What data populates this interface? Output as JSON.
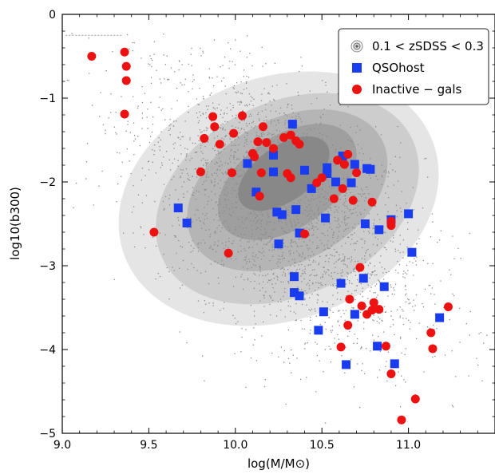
{
  "chart_data": {
    "type": "scatter",
    "title": "",
    "xlabel": "log(M/M⊙)",
    "ylabel": "log10(b300)",
    "xlim": [
      9.0,
      11.5
    ],
    "ylim": [
      -5.0,
      0.0
    ],
    "x_ticks": [
      {
        "value": 9.0,
        "label": "9.0"
      },
      {
        "value": 9.5,
        "label": "9.5"
      },
      {
        "value": 10.0,
        "label": "10.0"
      },
      {
        "value": 10.5,
        "label": "10.5"
      },
      {
        "value": 11.0,
        "label": "11.0"
      }
    ],
    "y_ticks": [
      {
        "value": 0,
        "label": "0"
      },
      {
        "value": -1,
        "label": "−1"
      },
      {
        "value": -2,
        "label": "−2"
      },
      {
        "value": -3,
        "label": "−3"
      },
      {
        "value": -4,
        "label": "−4"
      },
      {
        "value": -5,
        "label": "−5"
      }
    ],
    "grid": false,
    "legend_position": "top-right",
    "legend": [
      {
        "label": "0.1 < zSDSS < 0.3",
        "marker": "contour",
        "color": "#7f7f7f"
      },
      {
        "label": "QSOhost",
        "marker": "square",
        "color": "#1a3cf0"
      },
      {
        "label": "Inactive − gals",
        "marker": "circle",
        "color": "#ee1111"
      }
    ],
    "background": {
      "name": "0.1 < zSDSS < 0.3",
      "description_points": "dense grey density of SDSS galaxies, peak near log M 10.3, log b -1.9"
    },
    "series": [
      {
        "name": "QSOhost",
        "marker": "square",
        "color": "#1a3cf0",
        "points": [
          [
            9.67,
            -2.31
          ],
          [
            9.72,
            -2.49
          ],
          [
            10.07,
            -1.78
          ],
          [
            10.12,
            -2.12
          ],
          [
            10.22,
            -1.88
          ],
          [
            10.22,
            -1.68
          ],
          [
            10.24,
            -2.36
          ],
          [
            10.25,
            -2.74
          ],
          [
            10.27,
            -2.39
          ],
          [
            10.33,
            -1.31
          ],
          [
            10.34,
            -3.13
          ],
          [
            10.34,
            -3.32
          ],
          [
            10.35,
            -2.33
          ],
          [
            10.37,
            -2.61
          ],
          [
            10.37,
            -3.36
          ],
          [
            10.4,
            -1.86
          ],
          [
            10.44,
            -2.08
          ],
          [
            10.48,
            -3.77
          ],
          [
            10.51,
            -3.55
          ],
          [
            10.52,
            -2.43
          ],
          [
            10.53,
            -1.83
          ],
          [
            10.53,
            -1.9
          ],
          [
            10.58,
            -2.0
          ],
          [
            10.61,
            -3.21
          ],
          [
            10.62,
            -1.69
          ],
          [
            10.64,
            -4.18
          ],
          [
            10.67,
            -2.01
          ],
          [
            10.69,
            -1.79
          ],
          [
            10.69,
            -3.58
          ],
          [
            10.74,
            -3.15
          ],
          [
            10.76,
            -1.84
          ],
          [
            10.78,
            -1.85
          ],
          [
            10.82,
            -3.96
          ],
          [
            10.83,
            -2.57
          ],
          [
            10.86,
            -3.25
          ],
          [
            10.9,
            -2.45
          ],
          [
            10.92,
            -4.17
          ],
          [
            11.0,
            -2.38
          ],
          [
            11.02,
            -2.84
          ],
          [
            11.18,
            -3.62
          ],
          [
            10.75,
            -2.5
          ]
        ]
      },
      {
        "name": "Inactive − gals",
        "marker": "circle",
        "color": "#ee1111",
        "points": [
          [
            9.17,
            -0.5
          ],
          [
            9.36,
            -0.45
          ],
          [
            9.37,
            -0.62
          ],
          [
            9.37,
            -0.79
          ],
          [
            9.36,
            -1.19
          ],
          [
            9.53,
            -2.6
          ],
          [
            9.8,
            -1.88
          ],
          [
            9.82,
            -1.48
          ],
          [
            9.87,
            -1.22
          ],
          [
            9.88,
            -1.34
          ],
          [
            9.91,
            -1.55
          ],
          [
            9.96,
            -2.85
          ],
          [
            9.98,
            -1.89
          ],
          [
            9.99,
            -1.42
          ],
          [
            10.04,
            -1.21
          ],
          [
            10.1,
            -1.66
          ],
          [
            10.11,
            -1.7
          ],
          [
            10.13,
            -1.52
          ],
          [
            10.14,
            -2.17
          ],
          [
            10.15,
            -1.89
          ],
          [
            10.16,
            -1.34
          ],
          [
            10.18,
            -1.53
          ],
          [
            10.22,
            -1.6
          ],
          [
            10.28,
            -1.47
          ],
          [
            10.3,
            -1.9
          ],
          [
            10.32,
            -1.95
          ],
          [
            10.32,
            -1.44
          ],
          [
            10.35,
            -1.51
          ],
          [
            10.37,
            -1.55
          ],
          [
            10.4,
            -2.62
          ],
          [
            10.47,
            -2.01
          ],
          [
            10.5,
            -1.95
          ],
          [
            10.57,
            -2.2
          ],
          [
            10.59,
            -1.74
          ],
          [
            10.61,
            -3.97
          ],
          [
            10.62,
            -2.08
          ],
          [
            10.63,
            -1.79
          ],
          [
            10.65,
            -3.71
          ],
          [
            10.65,
            -1.67
          ],
          [
            10.66,
            -3.4
          ],
          [
            10.68,
            -2.22
          ],
          [
            10.7,
            -1.89
          ],
          [
            10.72,
            -3.02
          ],
          [
            10.73,
            -3.48
          ],
          [
            10.76,
            -3.58
          ],
          [
            10.79,
            -2.24
          ],
          [
            10.79,
            -3.53
          ],
          [
            10.8,
            -3.44
          ],
          [
            10.83,
            -3.52
          ],
          [
            10.87,
            -3.96
          ],
          [
            10.9,
            -4.29
          ],
          [
            10.9,
            -2.52
          ],
          [
            10.96,
            -4.84
          ],
          [
            11.04,
            -4.59
          ],
          [
            11.13,
            -3.8
          ],
          [
            11.14,
            -3.99
          ],
          [
            11.23,
            -3.49
          ],
          [
            10.9,
            -2.47
          ]
        ]
      }
    ]
  }
}
